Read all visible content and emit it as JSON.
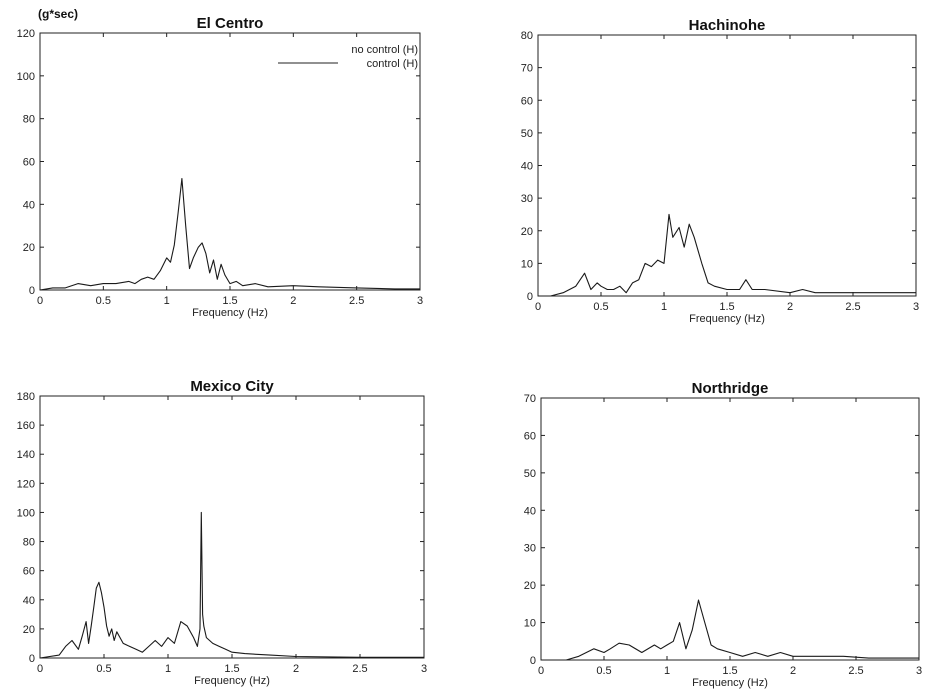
{
  "unit_label": "(g*sec)",
  "chart_data": [
    {
      "type": "line",
      "title": "El Centro",
      "xlabel": "Frequency (Hz)",
      "ylabel": "",
      "xlim": [
        0,
        3
      ],
      "ylim": [
        0,
        120
      ],
      "xticks": [
        "0",
        "0.5",
        "1",
        "1.5",
        "2",
        "2.5",
        "3"
      ],
      "yticks": [
        "0",
        "20",
        "40",
        "60",
        "80",
        "100",
        "120"
      ],
      "legend": {
        "placement": "top-right",
        "entries": [
          "no control (H)",
          "control (H)"
        ]
      },
      "series": [
        {
          "name": "control (H)",
          "x": [
            0,
            0.1,
            0.2,
            0.3,
            0.4,
            0.5,
            0.6,
            0.7,
            0.75,
            0.8,
            0.85,
            0.9,
            0.95,
            1.0,
            1.03,
            1.06,
            1.09,
            1.12,
            1.15,
            1.18,
            1.21,
            1.25,
            1.28,
            1.31,
            1.34,
            1.37,
            1.4,
            1.43,
            1.46,
            1.5,
            1.55,
            1.6,
            1.7,
            1.8,
            2.0,
            2.2,
            2.5,
            2.8,
            3.0
          ],
          "values": [
            0,
            1,
            1,
            3,
            2,
            3,
            3,
            4,
            3,
            5,
            6,
            5,
            9,
            15,
            13,
            21,
            36,
            52,
            30,
            10,
            15,
            20,
            22,
            17,
            8,
            14,
            5,
            12,
            7,
            3,
            4,
            2,
            3,
            1.5,
            2,
            1.5,
            1,
            0.5,
            0.5
          ]
        }
      ]
    },
    {
      "type": "line",
      "title": "Hachinohe",
      "xlabel": "Frequency (Hz)",
      "ylabel": "",
      "xlim": [
        0,
        3
      ],
      "ylim": [
        0,
        80
      ],
      "xticks": [
        "0",
        "0.5",
        "1",
        "1.5",
        "2",
        "2.5",
        "3"
      ],
      "yticks": [
        "0",
        "10",
        "20",
        "30",
        "40",
        "50",
        "60",
        "70",
        "80"
      ],
      "series": [
        {
          "name": "",
          "x": [
            0,
            0.1,
            0.2,
            0.3,
            0.37,
            0.42,
            0.47,
            0.5,
            0.55,
            0.6,
            0.65,
            0.7,
            0.75,
            0.8,
            0.85,
            0.9,
            0.95,
            1.0,
            1.04,
            1.07,
            1.12,
            1.16,
            1.2,
            1.24,
            1.3,
            1.35,
            1.4,
            1.5,
            1.6,
            1.65,
            1.7,
            1.8,
            2.0,
            2.1,
            2.2,
            2.5,
            2.8,
            3.0
          ],
          "values": [
            0,
            0,
            1,
            3,
            7,
            2,
            4,
            3,
            2,
            2,
            3,
            1,
            4,
            5,
            10,
            9,
            11,
            10,
            25,
            18,
            21,
            15,
            22,
            18,
            10,
            4,
            3,
            2,
            2,
            5,
            2,
            2,
            1,
            2,
            1,
            1,
            1,
            1
          ]
        }
      ]
    },
    {
      "type": "line",
      "title": "Mexico City",
      "xlabel": "Frequency (Hz)",
      "ylabel": "",
      "xlim": [
        0,
        3
      ],
      "ylim": [
        0,
        180
      ],
      "xticks": [
        "0",
        "0.5",
        "1",
        "1.5",
        "2",
        "2.5",
        "3"
      ],
      "yticks": [
        "0",
        "20",
        "40",
        "60",
        "80",
        "100",
        "120",
        "140",
        "160",
        "180"
      ],
      "series": [
        {
          "name": "",
          "x": [
            0,
            0.15,
            0.2,
            0.25,
            0.3,
            0.33,
            0.36,
            0.38,
            0.4,
            0.42,
            0.44,
            0.46,
            0.48,
            0.5,
            0.52,
            0.54,
            0.56,
            0.58,
            0.6,
            0.65,
            0.7,
            0.75,
            0.8,
            0.85,
            0.9,
            0.95,
            1.0,
            1.05,
            1.1,
            1.15,
            1.2,
            1.23,
            1.25,
            1.26,
            1.27,
            1.28,
            1.3,
            1.35,
            1.4,
            1.45,
            1.5,
            1.6,
            1.8,
            2.0,
            2.5,
            3.0
          ],
          "values": [
            0,
            2,
            8,
            12,
            6,
            15,
            25,
            10,
            22,
            35,
            48,
            52,
            45,
            35,
            22,
            15,
            20,
            12,
            18,
            10,
            8,
            6,
            4,
            8,
            12,
            8,
            14,
            10,
            25,
            22,
            14,
            8,
            20,
            100,
            30,
            22,
            14,
            10,
            8,
            6,
            4,
            3,
            2,
            1,
            0.5,
            0.5
          ]
        }
      ]
    },
    {
      "type": "line",
      "title": "Northridge",
      "xlabel": "Frequency (Hz)",
      "ylabel": "",
      "xlim": [
        0,
        3
      ],
      "ylim": [
        0,
        70
      ],
      "xticks": [
        "0",
        "0.5",
        "1",
        "1.5",
        "2",
        "2.5",
        "3"
      ],
      "yticks": [
        "0",
        "10",
        "20",
        "30",
        "40",
        "50",
        "60",
        "70"
      ],
      "series": [
        {
          "name": "",
          "x": [
            0,
            0.2,
            0.3,
            0.42,
            0.5,
            0.55,
            0.62,
            0.7,
            0.8,
            0.9,
            0.95,
            1.0,
            1.05,
            1.1,
            1.15,
            1.2,
            1.25,
            1.3,
            1.35,
            1.4,
            1.5,
            1.6,
            1.7,
            1.8,
            1.9,
            2.0,
            2.2,
            2.4,
            2.6,
            2.8,
            3.0
          ],
          "values": [
            0,
            0,
            1,
            3,
            2,
            3,
            4.5,
            4,
            2,
            4,
            3,
            4,
            5,
            10,
            3,
            8,
            16,
            10,
            4,
            3,
            2,
            1,
            2,
            1,
            2,
            1,
            1,
            1,
            0.5,
            0.5,
            0.5
          ]
        }
      ]
    }
  ]
}
